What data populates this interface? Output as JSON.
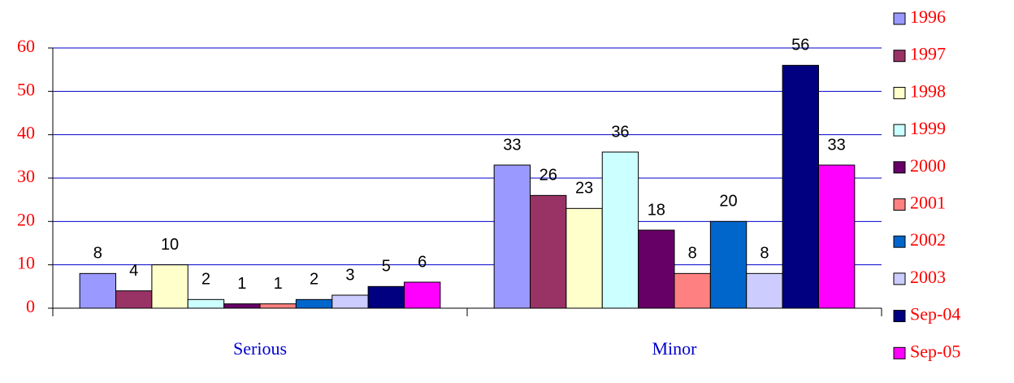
{
  "chart_data": {
    "type": "bar",
    "categories": [
      "Serious",
      "Minor"
    ],
    "series": [
      {
        "name": "1996",
        "color": "#9999ff",
        "values": [
          8,
          33
        ]
      },
      {
        "name": "1997",
        "color": "#993366",
        "values": [
          4,
          26
        ]
      },
      {
        "name": "1998",
        "color": "#ffffcc",
        "values": [
          10,
          23
        ]
      },
      {
        "name": "1999",
        "color": "#ccffff",
        "values": [
          2,
          36
        ]
      },
      {
        "name": "2000",
        "color": "#660066",
        "values": [
          1,
          18
        ]
      },
      {
        "name": "2001",
        "color": "#ff8080",
        "values": [
          1,
          8
        ]
      },
      {
        "name": "2002",
        "color": "#0066cc",
        "values": [
          2,
          20
        ]
      },
      {
        "name": "2003",
        "color": "#ccccff",
        "values": [
          3,
          8
        ]
      },
      {
        "name": "Sep-04",
        "color": "#000080",
        "values": [
          5,
          56
        ]
      },
      {
        "name": "Sep-05",
        "color": "#ff00ff",
        "values": [
          6,
          33
        ]
      }
    ],
    "ylim": [
      0,
      60
    ],
    "yticks": [
      0,
      10,
      20,
      30,
      40,
      50,
      60
    ],
    "grid": true,
    "legend": "right"
  }
}
